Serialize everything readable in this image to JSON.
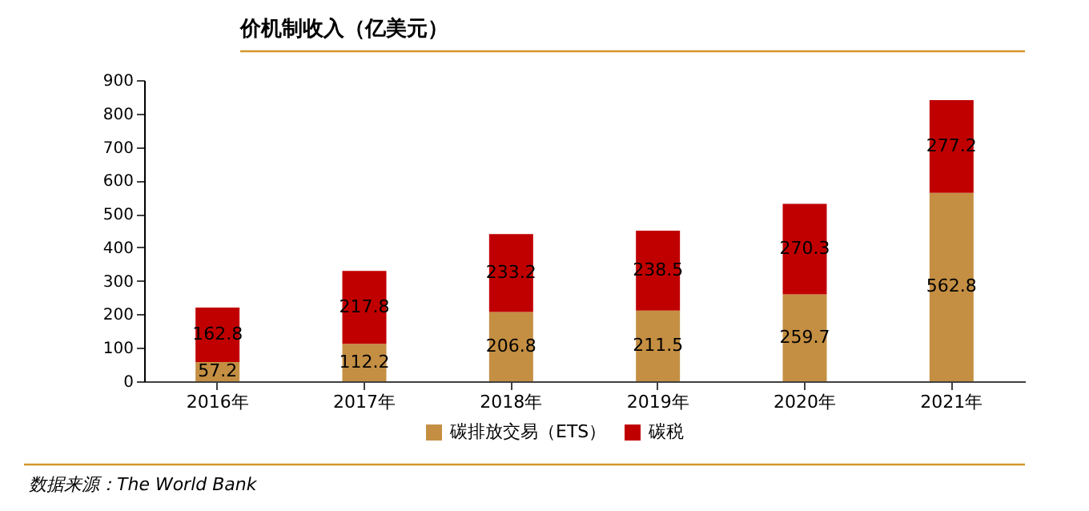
{
  "chart_data": {
    "type": "bar",
    "title": "价机制收入（亿美元）",
    "categories": [
      "2016年",
      "2017年",
      "2018年",
      "2019年",
      "2020年",
      "2021年"
    ],
    "series": [
      {
        "name": "碳排放交易（ETS）",
        "color": "#c48f43",
        "values": [
          57.2,
          112.2,
          206.8,
          211.5,
          259.7,
          562.8
        ]
      },
      {
        "name": "碳税",
        "color": "#c00000",
        "values": [
          162.8,
          217.8,
          233.2,
          238.5,
          270.3,
          277.2
        ]
      }
    ],
    "stacked": true,
    "data_labels": true,
    "ylim": [
      0,
      900
    ],
    "yticks": [
      0,
      100,
      200,
      300,
      400,
      500,
      600,
      700,
      800,
      900
    ],
    "grid": false,
    "legend": "bottom",
    "annotations": [
      "数据来源：The World Bank"
    ]
  }
}
